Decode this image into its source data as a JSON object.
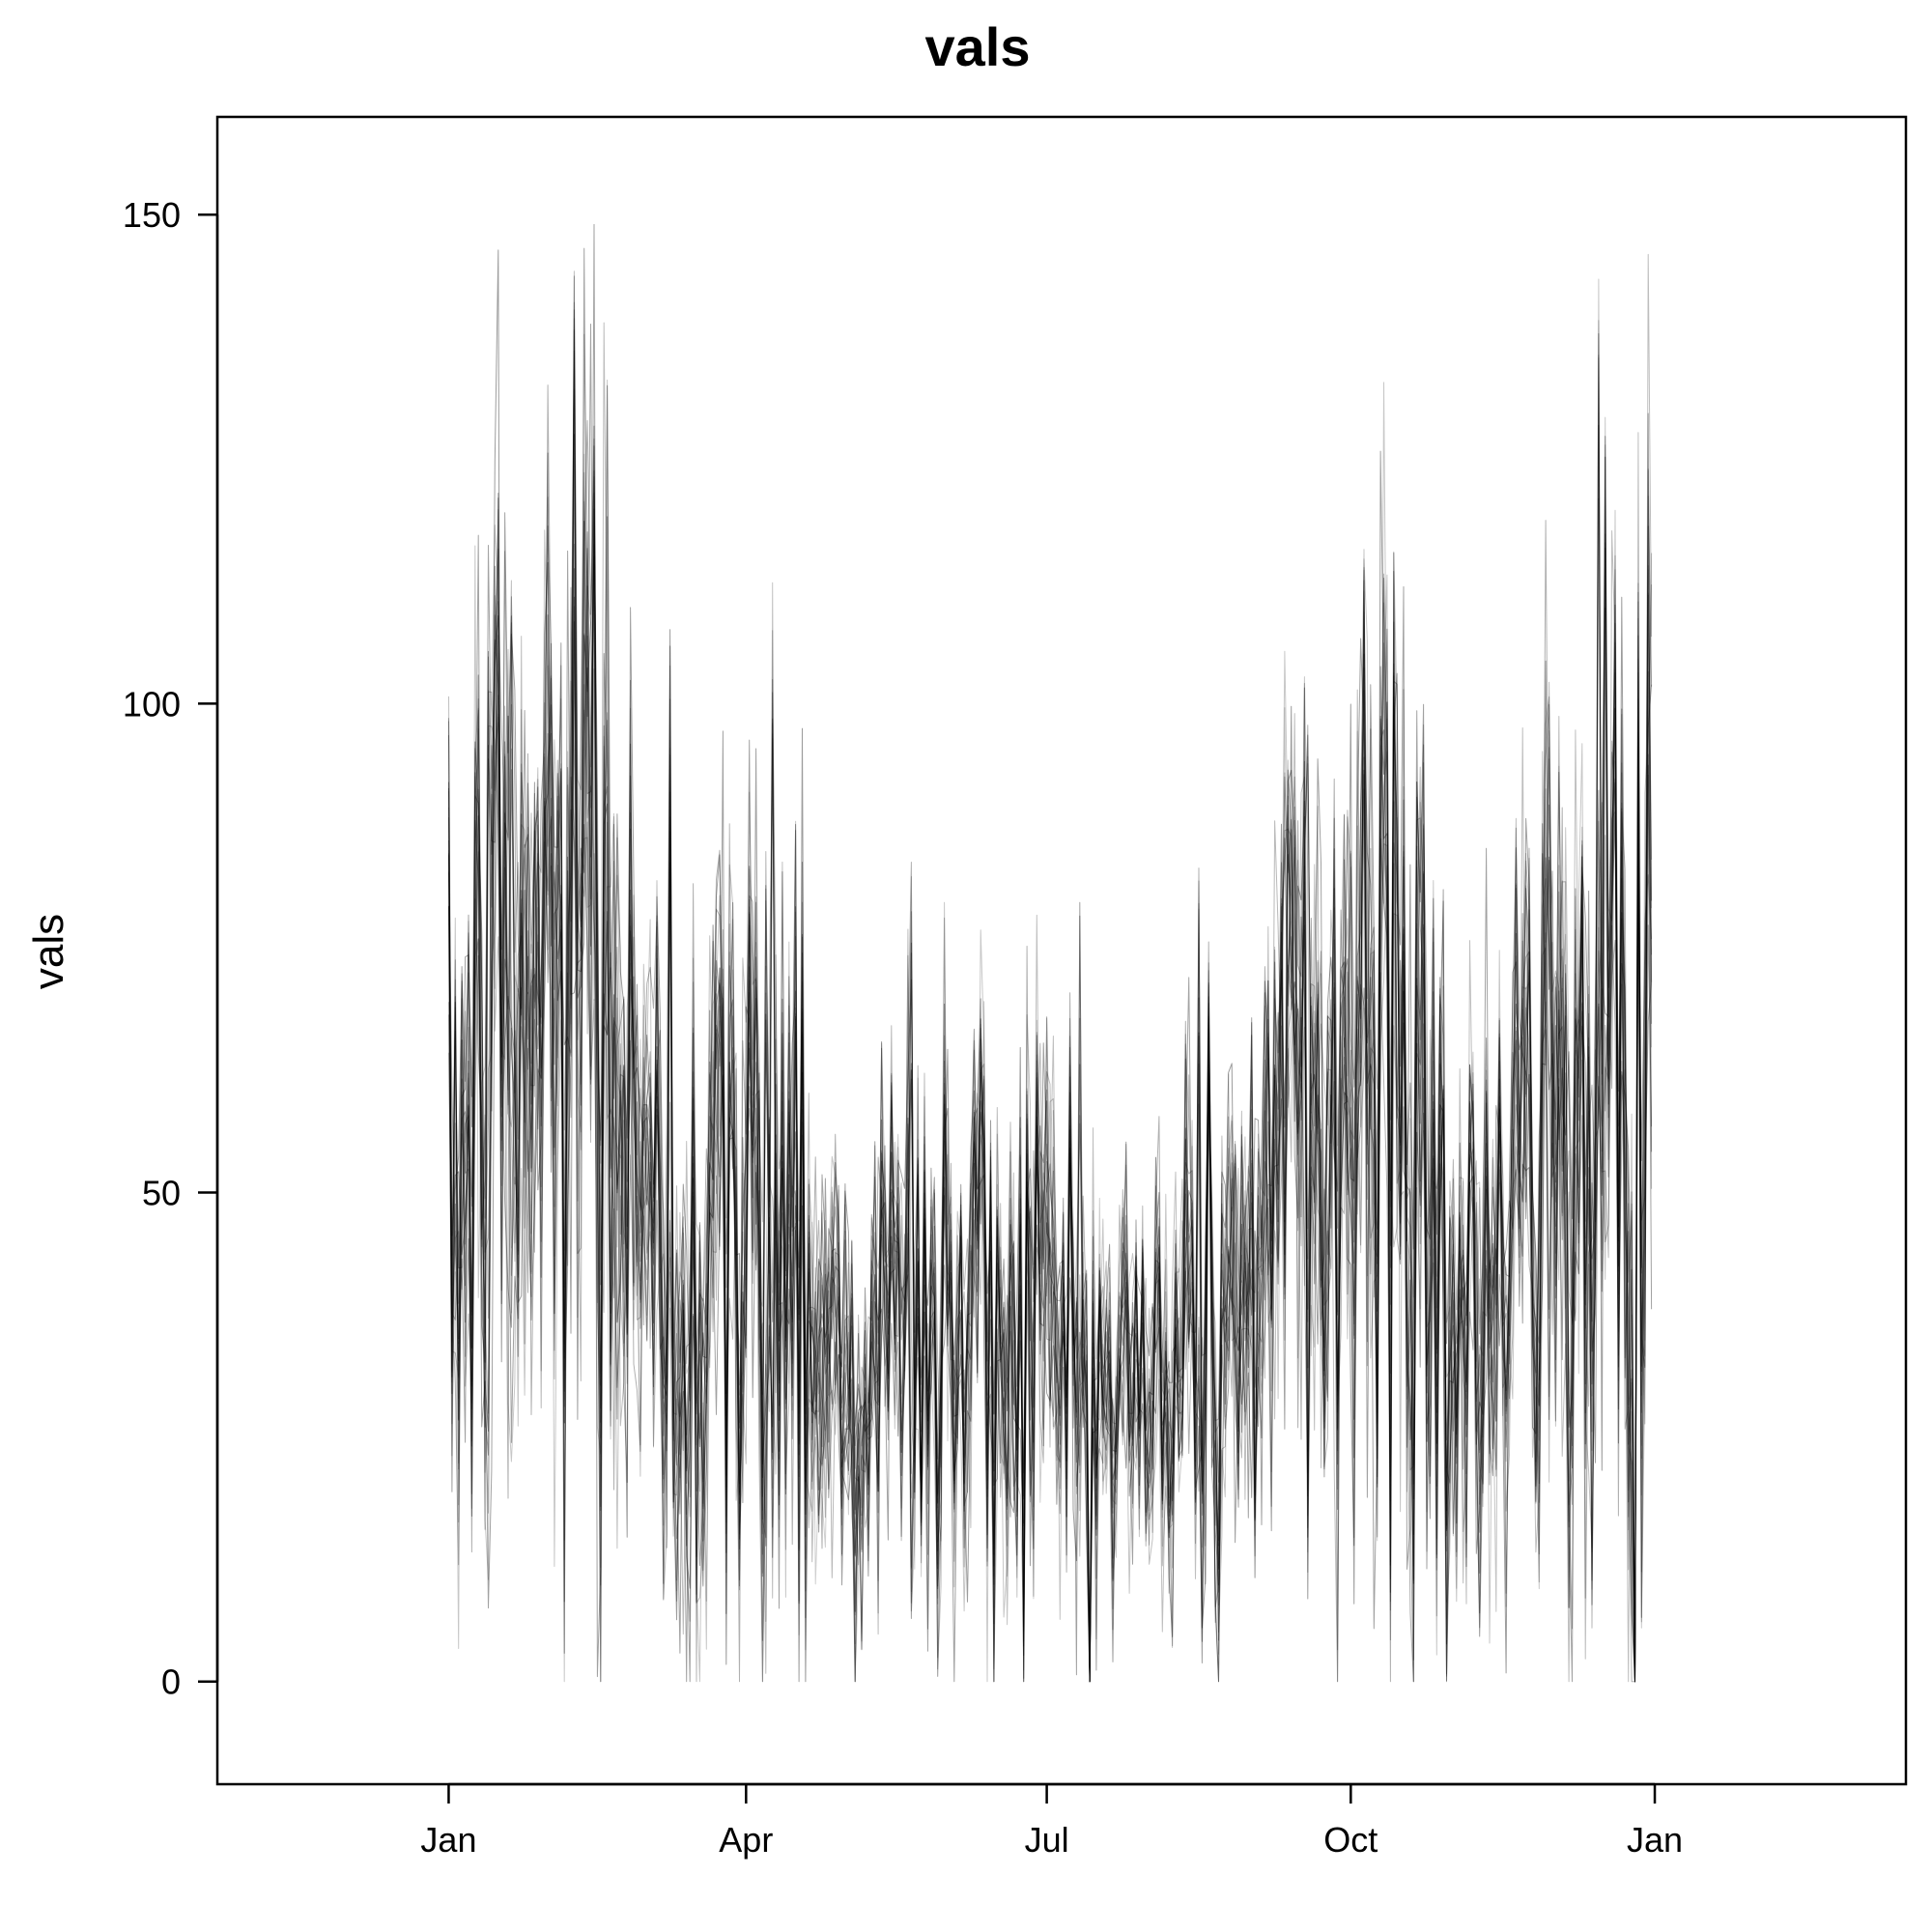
{
  "chart_data": {
    "type": "line",
    "title": "vals",
    "xlabel": "",
    "ylabel": "vals",
    "x_range": [
      "2021-01-01",
      "2021-12-31"
    ],
    "xlim": [
      "2020-10-23",
      "2022-03-18"
    ],
    "ylim": [
      -10.5,
      160
    ],
    "x_ticks": [
      {
        "label": "Jan",
        "date": "2021-01-01"
      },
      {
        "label": "Apr",
        "date": "2021-04-01"
      },
      {
        "label": "Jul",
        "date": "2021-07-01"
      },
      {
        "label": "Oct",
        "date": "2021-10-01"
      },
      {
        "label": "Jan",
        "date": "2022-01-01"
      }
    ],
    "y_ticks": [
      0,
      50,
      100,
      150
    ],
    "grid": false,
    "series_color": "#000000",
    "seasonal_level": [
      {
        "date": "2021-01-01",
        "value": 45
      },
      {
        "date": "2021-01-15",
        "value": 65
      },
      {
        "date": "2021-02-01",
        "value": 70
      },
      {
        "date": "2021-02-15",
        "value": 80
      },
      {
        "date": "2021-03-01",
        "value": 40
      },
      {
        "date": "2021-03-15",
        "value": 45
      },
      {
        "date": "2021-04-01",
        "value": 45
      },
      {
        "date": "2021-04-15",
        "value": 48
      },
      {
        "date": "2021-05-01",
        "value": 30
      },
      {
        "date": "2021-05-15",
        "value": 35
      },
      {
        "date": "2021-06-01",
        "value": 35
      },
      {
        "date": "2021-06-15",
        "value": 38
      },
      {
        "date": "2021-07-01",
        "value": 38
      },
      {
        "date": "2021-07-15",
        "value": 30
      },
      {
        "date": "2021-08-01",
        "value": 28
      },
      {
        "date": "2021-08-15",
        "value": 35
      },
      {
        "date": "2021-09-01",
        "value": 42
      },
      {
        "date": "2021-09-15",
        "value": 55
      },
      {
        "date": "2021-10-01",
        "value": 60
      },
      {
        "date": "2021-10-15",
        "value": 70
      },
      {
        "date": "2021-11-01",
        "value": 40
      },
      {
        "date": "2021-11-15",
        "value": 40
      },
      {
        "date": "2021-12-01",
        "value": 55
      },
      {
        "date": "2021-12-15",
        "value": 60
      },
      {
        "date": "2021-12-31",
        "value": 70
      }
    ],
    "peaks": [
      {
        "date": "2021-01-03",
        "value": 82
      },
      {
        "date": "2021-01-13",
        "value": 117
      },
      {
        "date": "2021-01-20",
        "value": 114
      },
      {
        "date": "2021-02-08",
        "value": 149
      },
      {
        "date": "2021-02-14",
        "value": 135
      },
      {
        "date": "2021-03-09",
        "value": 108
      },
      {
        "date": "2021-04-07",
        "value": 90
      },
      {
        "date": "2021-04-09",
        "value": 114
      },
      {
        "date": "2021-04-16",
        "value": 88
      },
      {
        "date": "2021-05-21",
        "value": 85
      },
      {
        "date": "2021-07-11",
        "value": 82
      },
      {
        "date": "2021-08-16",
        "value": 84
      },
      {
        "date": "2021-09-11",
        "value": 110
      },
      {
        "date": "2021-09-18",
        "value": 107
      },
      {
        "date": "2021-10-05",
        "value": 116
      },
      {
        "date": "2021-10-14",
        "value": 119
      },
      {
        "date": "2021-11-30",
        "value": 103
      },
      {
        "date": "2021-12-15",
        "value": 145
      },
      {
        "date": "2021-12-17",
        "value": 133
      }
    ],
    "series_count": 20
  }
}
